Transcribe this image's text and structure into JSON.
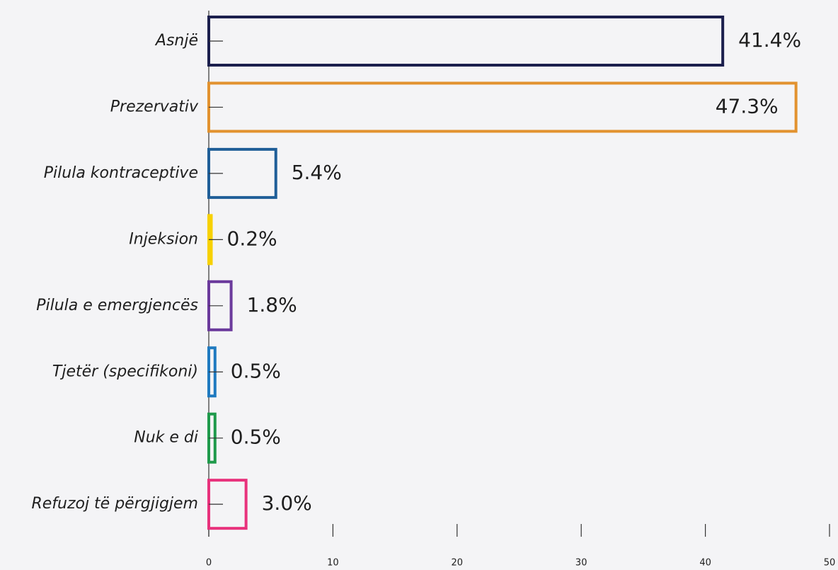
{
  "chart_data": {
    "type": "bar",
    "orientation": "horizontal",
    "categories": [
      "Asnjë",
      "Prezervativ",
      "Pilula kontraceptive",
      "Injeksion",
      "Pilula e emergjencës",
      "Tjetër (specifikoni)",
      "Nuk e di",
      "Refuzoj të përgjigjem"
    ],
    "values": [
      41.4,
      47.3,
      5.4,
      0.2,
      1.8,
      0.5,
      0.5,
      3.0
    ],
    "value_labels": [
      "41.4%",
      "47.3%",
      "5.4%",
      "0.2%",
      "1.8%",
      "0.5%",
      "0.5%",
      "3.0%"
    ],
    "colors": [
      "#1b1f4d",
      "#e2922f",
      "#1f5e98",
      "#f7d100",
      "#6b3a9c",
      "#1f7ac0",
      "#1f9a4b",
      "#e8327c"
    ],
    "xlim": [
      0,
      50
    ],
    "xticks": [
      0,
      10,
      20,
      30,
      40,
      50
    ]
  }
}
